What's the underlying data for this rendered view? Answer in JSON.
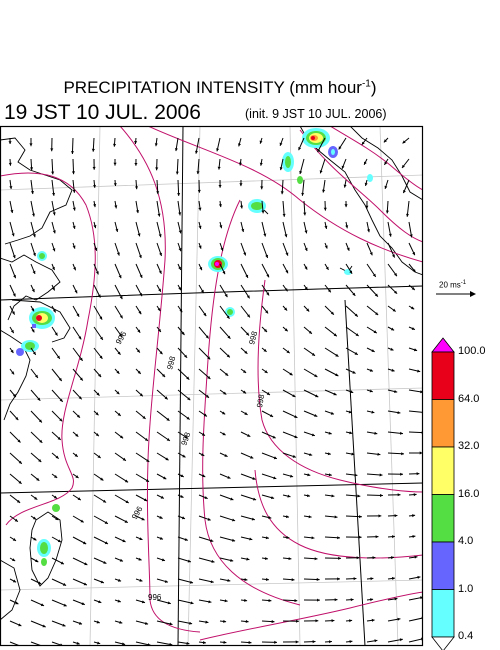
{
  "title": {
    "main": "PRECIPITATION INTENSITY (mm hour",
    "unit_exp": "-1",
    "close": ")"
  },
  "valid_time": "19 JST 10 JUL. 2006",
  "init_time": "(init. 9 JST 10 JUL. 2006)",
  "vector_scale": {
    "text": "20 ms",
    "exp": "-1"
  },
  "colorbar": {
    "levels": [
      "100.0",
      "64.0",
      "32.0",
      "16.0",
      "4.0",
      "1.0",
      "0.4"
    ],
    "colors": [
      "#ff00ff",
      "#e8001a",
      "#ff9933",
      "#ffff66",
      "#55dd44",
      "#6666ff",
      "#66ffff",
      "#ffffff"
    ]
  },
  "isobars": [
    "996",
    "998",
    "998",
    "998",
    "996",
    "998",
    "996"
  ]
}
